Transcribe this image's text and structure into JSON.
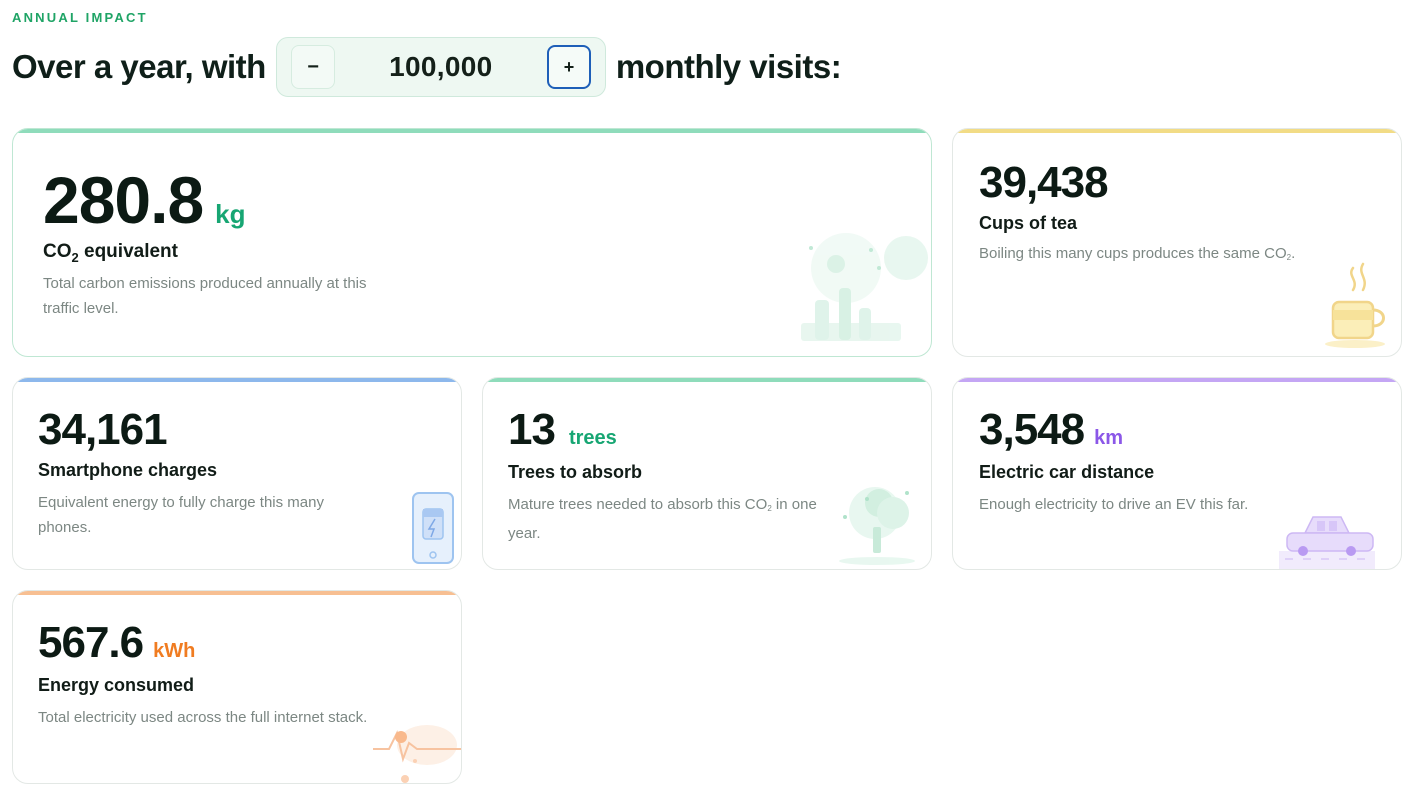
{
  "eyebrow": "ANNUAL IMPACT",
  "headline": {
    "prefix": "Over a year, with",
    "suffix": "monthly visits:"
  },
  "stepper": {
    "decrement_label": "−",
    "value": "100,000",
    "increment_label": "+"
  },
  "colors": {
    "green": "#1bb07a",
    "yellow": "#f2dc86",
    "blue": "#8db8ec",
    "purple": "#b89af2",
    "orange": "#f7bf92",
    "unit_green": "#17a673",
    "unit_purple": "#8b57e8",
    "unit_orange": "#f07c21"
  },
  "cards": {
    "co2": {
      "value": "280.8",
      "unit": "kg",
      "label_main": "CO",
      "label_sub": "2",
      "label_rest": " equivalent",
      "description": "Total carbon emissions produced annually at this traffic level.",
      "icon": "factory-icon"
    },
    "tea": {
      "value": "39,438",
      "label": "Cups of tea",
      "desc_main": "Boiling this many cups produces the same CO",
      "desc_sub": "2",
      "desc_end": ".",
      "icon": "tea-cup-icon"
    },
    "phone": {
      "value": "34,161",
      "label": "Smartphone charges",
      "description": "Equivalent energy to fully charge this many phones.",
      "icon": "smartphone-icon"
    },
    "trees": {
      "value": "13",
      "unit": "trees",
      "label": "Trees to absorb",
      "desc_main": "Mature trees needed to absorb this CO",
      "desc_sub": "2",
      "desc_end": " in one year.",
      "icon": "tree-icon"
    },
    "car": {
      "value": "3,548",
      "unit": "km",
      "label": "Electric car distance",
      "description": "Enough electricity to drive an EV this far.",
      "icon": "electric-car-icon"
    },
    "energy": {
      "value": "567.6",
      "unit": "kWh",
      "label": "Energy consumed",
      "description": "Total electricity used across the full internet stack.",
      "icon": "energy-pulse-icon"
    }
  }
}
